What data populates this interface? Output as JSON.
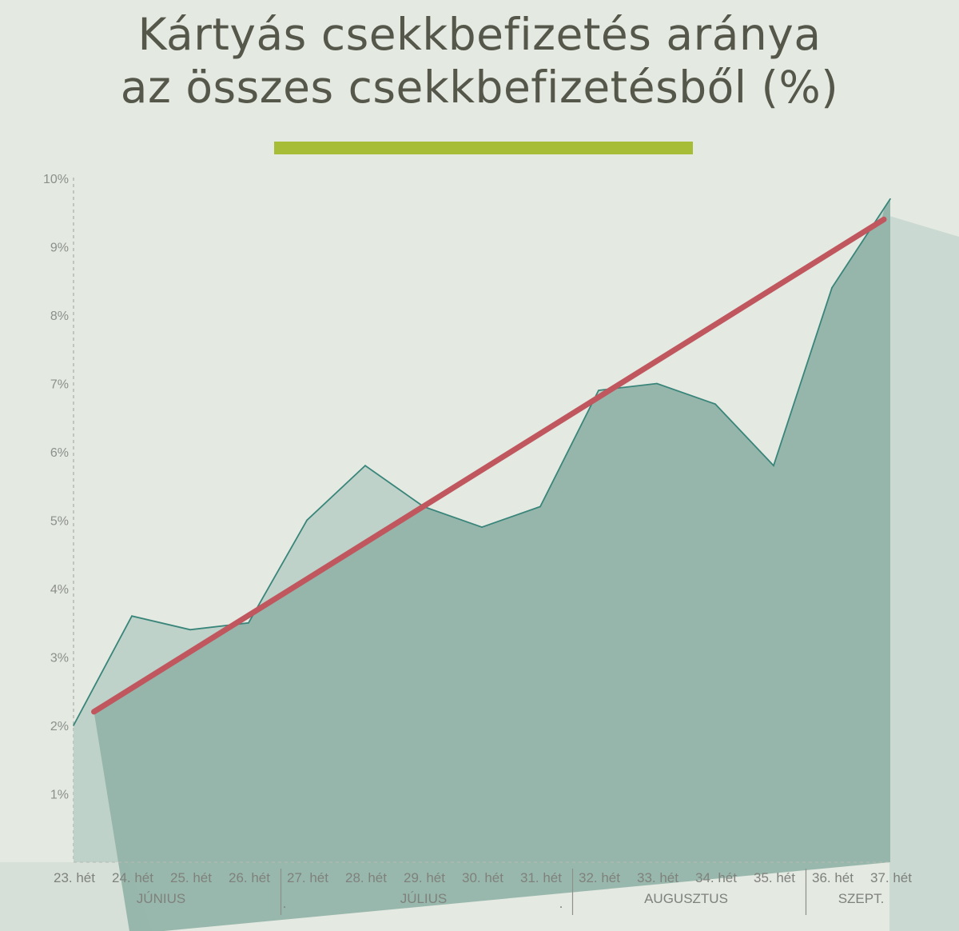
{
  "title_line1": "Kártyás csekkbefizetés aránya",
  "title_line2": "az összes csekkbefizetésből (%)",
  "colors": {
    "background": "#e4e9e2",
    "title": "#55574a",
    "title_rule": "#a8bd37",
    "area_light": "#b9cfc6",
    "area_dark": "#93b3a8",
    "series_line": "#3a857a",
    "trend_line": "#c0565e"
  },
  "chart_data": {
    "type": "area",
    "title": "Kártyás csekkbefizetés aránya az összes csekkbefizetésből (%)",
    "xlabel": "",
    "ylabel": "",
    "ylim": [
      0,
      10
    ],
    "y_ticks": [
      "1%",
      "2%",
      "3%",
      "4%",
      "5%",
      "6%",
      "7%",
      "8%",
      "9%",
      "10%"
    ],
    "y_tick_values": [
      1,
      2,
      3,
      4,
      5,
      6,
      7,
      8,
      9,
      10
    ],
    "categories": [
      "23. hét",
      "24. hét",
      "25. hét",
      "26. hét",
      "27. hét",
      "28. hét",
      "29. hét",
      "30. hét",
      "31. hét",
      "32. hét",
      "33. hét",
      "34. hét",
      "35. hét",
      "36. hét",
      "37. hét"
    ],
    "series": [
      {
        "values": [
          2.0,
          3.6,
          3.4,
          3.5,
          5.0,
          5.8,
          5.2,
          4.9,
          5.2,
          6.9,
          7.0,
          6.7,
          5.8,
          8.4,
          9.7
        ]
      }
    ],
    "trend": {
      "start": 2.2,
      "end": 9.4
    },
    "months": [
      {
        "label": "JÚNIUS",
        "first": 0,
        "last": 3
      },
      {
        "label": "JÚLIUS",
        "first": 4,
        "last": 8
      },
      {
        "label": "AUGUSZTUS",
        "first": 9,
        "last": 12
      },
      {
        "label": "SZEPT.",
        "first": 13,
        "last": 14
      }
    ],
    "stray_dots": [
      ".",
      "."
    ],
    "grid": false
  }
}
